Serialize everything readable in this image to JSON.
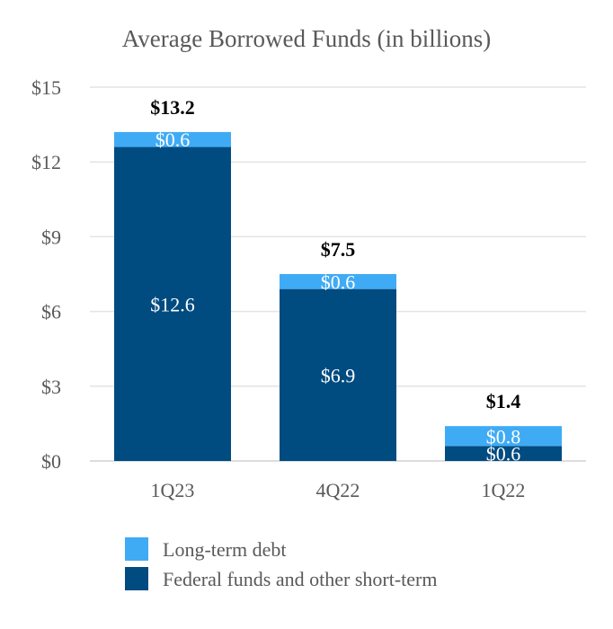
{
  "chart_data": {
    "type": "bar",
    "stacked": true,
    "title": "Average Borrowed Funds (in billions)",
    "xlabel": "",
    "ylabel": "",
    "categories": [
      "1Q23",
      "4Q22",
      "1Q22"
    ],
    "series": [
      {
        "name": "Federal funds and other short-term",
        "color": "#004B80",
        "values": [
          12.6,
          6.9,
          0.6
        ],
        "labels": [
          "$12.6",
          "$6.9",
          "$0.6"
        ]
      },
      {
        "name": "Long-term debt",
        "color": "#40ABF5",
        "values": [
          0.6,
          0.6,
          0.8
        ],
        "labels": [
          "$0.6",
          "$0.6",
          "$0.8"
        ]
      }
    ],
    "totals": [
      13.2,
      7.5,
      1.4
    ],
    "total_labels": [
      "$13.2",
      "$7.5",
      "$1.4"
    ],
    "ylim": [
      0,
      15
    ],
    "yticks": [
      0,
      3,
      6,
      9,
      12,
      15
    ],
    "ytick_labels": [
      "$0",
      "$3",
      "$6",
      "$9",
      "$12",
      "$15"
    ],
    "grid": true,
    "legend": {
      "placement": "bottom",
      "items": [
        {
          "label": "Long-term debt",
          "color": "#40ABF5"
        },
        {
          "label": "Federal funds and other short-term",
          "color": "#004B80"
        }
      ]
    }
  }
}
